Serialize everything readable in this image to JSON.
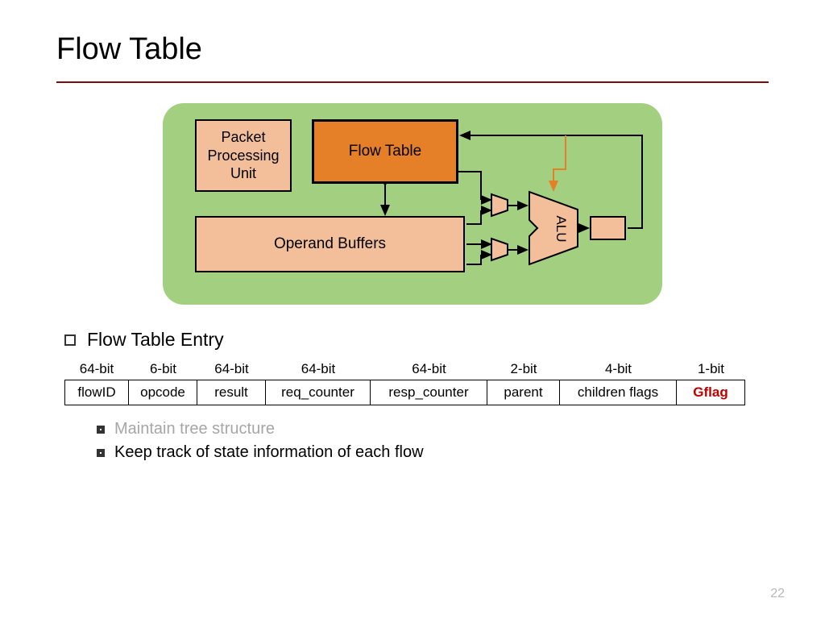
{
  "title": "Flow Table",
  "rule_color": "#7a0c0c",
  "diagram": {
    "background_color": "#a3d080",
    "ppu": {
      "label": "Packet\nProcessing\nUnit",
      "fill": "#f3bf9b"
    },
    "flow_table": {
      "label": "Flow Table",
      "fill": "#e57f28"
    },
    "operand": {
      "label": "Operand Buffers",
      "fill": "#f3bf9b"
    },
    "alu": {
      "label": "ALU",
      "fill": "#f3bf9b"
    },
    "smallbox_fill": "#f3bf9b",
    "mux_fill": "#f3bf9b",
    "wire_color": "#000000",
    "feedback_arrow_color": "#e57f28"
  },
  "bullet_main": "Flow Table Entry",
  "sub_bullets": [
    {
      "text": "Maintain tree structure",
      "color": "#a6a6a6"
    },
    {
      "text": "Keep track of state information of each flow",
      "color": "#000000"
    }
  ],
  "entry": {
    "widths": [
      80,
      85,
      85,
      130,
      145,
      90,
      145,
      85
    ],
    "headers": [
      "64-bit",
      "6-bit",
      "64-bit",
      "64-bit",
      "64-bit",
      "2-bit",
      "4-bit",
      "1-bit"
    ],
    "fields": [
      {
        "label": "flowID",
        "color": "#000000"
      },
      {
        "label": "opcode",
        "color": "#000000"
      },
      {
        "label": "result",
        "color": "#000000"
      },
      {
        "label": "req_counter",
        "color": "#000000"
      },
      {
        "label": "resp_counter",
        "color": "#000000"
      },
      {
        "label": "parent",
        "color": "#000000"
      },
      {
        "label": "children flags",
        "color": "#000000"
      },
      {
        "label": "Gflag",
        "color": "#c00000",
        "bold": true
      }
    ]
  },
  "page_number": "22"
}
